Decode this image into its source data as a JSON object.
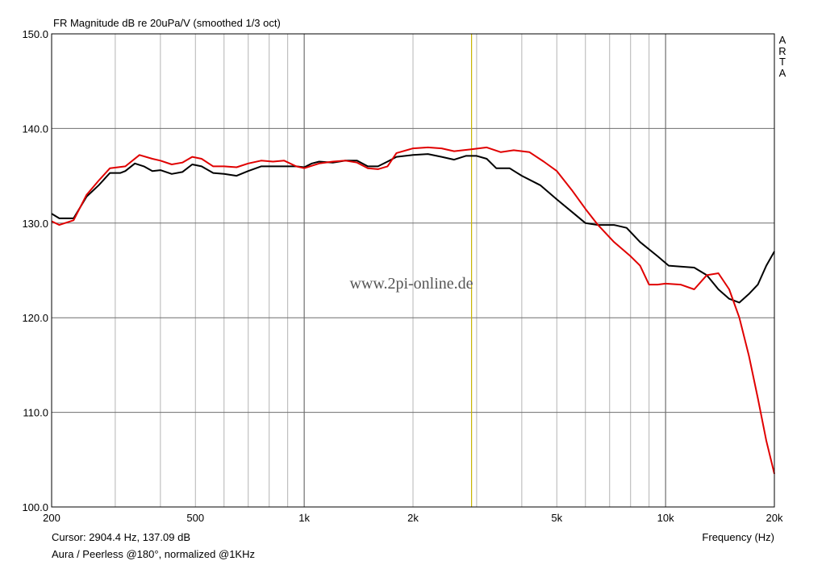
{
  "chart_data": {
    "type": "line",
    "title": "FR Magnitude dB re 20uPa/V (smoothed 1/3 oct)",
    "xlabel": "Frequency (Hz)",
    "ylabel": "",
    "x_scale": "log",
    "xlim": [
      200,
      20000
    ],
    "ylim": [
      100,
      150
    ],
    "x_ticks": [
      200,
      500,
      1000,
      2000,
      5000,
      10000,
      20000
    ],
    "x_tick_labels": [
      "200",
      "500",
      "1k",
      "2k",
      "5k",
      "10k",
      "20k"
    ],
    "y_ticks": [
      100,
      110,
      120,
      130,
      140,
      150
    ],
    "y_tick_labels": [
      "100.0",
      "110.0",
      "120.0",
      "130.0",
      "140.0",
      "150.0"
    ],
    "grid": true,
    "cursor": {
      "x": 2904.4,
      "y": 137.09,
      "color": "#c8b400"
    },
    "series": [
      {
        "color": "#000000",
        "points": [
          [
            200,
            131.0
          ],
          [
            210,
            130.5
          ],
          [
            230,
            130.5
          ],
          [
            250,
            132.8
          ],
          [
            270,
            134.0
          ],
          [
            290,
            135.3
          ],
          [
            310,
            135.3
          ],
          [
            320,
            135.5
          ],
          [
            340,
            136.3
          ],
          [
            360,
            136.0
          ],
          [
            380,
            135.5
          ],
          [
            400,
            135.6
          ],
          [
            430,
            135.2
          ],
          [
            460,
            135.4
          ],
          [
            490,
            136.2
          ],
          [
            520,
            136.0
          ],
          [
            560,
            135.3
          ],
          [
            600,
            135.2
          ],
          [
            650,
            135.0
          ],
          [
            700,
            135.5
          ],
          [
            760,
            136.0
          ],
          [
            820,
            136.0
          ],
          [
            880,
            136.0
          ],
          [
            950,
            136.0
          ],
          [
            1000,
            135.9
          ],
          [
            1050,
            136.3
          ],
          [
            1100,
            136.5
          ],
          [
            1200,
            136.4
          ],
          [
            1300,
            136.6
          ],
          [
            1400,
            136.6
          ],
          [
            1500,
            136.0
          ],
          [
            1600,
            136.0
          ],
          [
            1700,
            136.5
          ],
          [
            1800,
            137.0
          ],
          [
            2000,
            137.2
          ],
          [
            2200,
            137.3
          ],
          [
            2400,
            137.0
          ],
          [
            2600,
            136.7
          ],
          [
            2800,
            137.1
          ],
          [
            3000,
            137.1
          ],
          [
            3200,
            136.8
          ],
          [
            3400,
            135.8
          ],
          [
            3700,
            135.8
          ],
          [
            4000,
            135.0
          ],
          [
            4500,
            134.0
          ],
          [
            5000,
            132.5
          ],
          [
            5500,
            131.2
          ],
          [
            6000,
            130.0
          ],
          [
            6500,
            129.8
          ],
          [
            7200,
            129.8
          ],
          [
            7800,
            129.5
          ],
          [
            8500,
            128.0
          ],
          [
            9500,
            126.5
          ],
          [
            10200,
            125.5
          ],
          [
            11000,
            125.4
          ],
          [
            12000,
            125.3
          ],
          [
            13000,
            124.5
          ],
          [
            14000,
            123.0
          ],
          [
            15000,
            122.0
          ],
          [
            16000,
            121.6
          ],
          [
            17000,
            122.5
          ],
          [
            18000,
            123.5
          ],
          [
            19000,
            125.5
          ],
          [
            20000,
            127.0
          ]
        ]
      },
      {
        "color": "#e00000",
        "points": [
          [
            200,
            130.2
          ],
          [
            210,
            129.8
          ],
          [
            230,
            130.3
          ],
          [
            250,
            133.0
          ],
          [
            270,
            134.5
          ],
          [
            290,
            135.8
          ],
          [
            320,
            136.0
          ],
          [
            350,
            137.2
          ],
          [
            380,
            136.8
          ],
          [
            400,
            136.6
          ],
          [
            430,
            136.2
          ],
          [
            460,
            136.4
          ],
          [
            490,
            137.0
          ],
          [
            520,
            136.8
          ],
          [
            560,
            136.0
          ],
          [
            600,
            136.0
          ],
          [
            650,
            135.9
          ],
          [
            700,
            136.3
          ],
          [
            760,
            136.6
          ],
          [
            820,
            136.5
          ],
          [
            880,
            136.6
          ],
          [
            950,
            136.0
          ],
          [
            1000,
            135.8
          ],
          [
            1100,
            136.3
          ],
          [
            1200,
            136.5
          ],
          [
            1300,
            136.6
          ],
          [
            1400,
            136.4
          ],
          [
            1500,
            135.8
          ],
          [
            1600,
            135.7
          ],
          [
            1700,
            136.0
          ],
          [
            1800,
            137.4
          ],
          [
            2000,
            137.9
          ],
          [
            2200,
            138.0
          ],
          [
            2400,
            137.9
          ],
          [
            2600,
            137.6
          ],
          [
            2900,
            137.8
          ],
          [
            3200,
            138.0
          ],
          [
            3500,
            137.5
          ],
          [
            3800,
            137.7
          ],
          [
            4200,
            137.5
          ],
          [
            4600,
            136.5
          ],
          [
            5000,
            135.5
          ],
          [
            5500,
            133.5
          ],
          [
            6000,
            131.5
          ],
          [
            6500,
            129.8
          ],
          [
            7200,
            128.0
          ],
          [
            8000,
            126.5
          ],
          [
            8500,
            125.5
          ],
          [
            9000,
            123.5
          ],
          [
            9500,
            123.5
          ],
          [
            10000,
            123.6
          ],
          [
            11000,
            123.5
          ],
          [
            12000,
            123.0
          ],
          [
            13000,
            124.5
          ],
          [
            14000,
            124.7
          ],
          [
            15000,
            123.0
          ],
          [
            16000,
            120.0
          ],
          [
            17000,
            116.0
          ],
          [
            18000,
            111.5
          ],
          [
            19000,
            107.0
          ],
          [
            20000,
            103.5
          ]
        ]
      }
    ]
  },
  "header": {
    "brand": [
      "A",
      "R",
      "T",
      "A"
    ]
  },
  "watermark": "www.2pi-online.de",
  "footer": {
    "cursor_readout": "Cursor: 2904.4 Hz, 137.09 dB",
    "note": "Aura / Peerless @180°, normalized @1KHz"
  }
}
